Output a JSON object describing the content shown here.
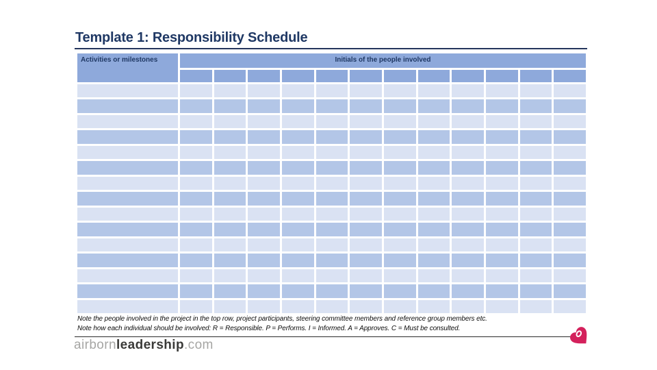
{
  "title": "Template 1: Responsibility Schedule",
  "table": {
    "activities_header": "Activities or milestones",
    "initials_header": "Initials of the people involved",
    "people_columns": 12,
    "body_rows": 15
  },
  "notes": {
    "line1": "Note the people involved in the project in the top row, project participants, steering committee members and reference group members etc.",
    "line2": "Note how each individual should be involved: R = Responsible. P = Performs. I = Informed. A = Approves. C = Must be consulted."
  },
  "footer": {
    "brand_prefix": "airborn",
    "brand_bold": "leadership",
    "brand_suffix": ".com",
    "logo_icon": "heart-logo-icon"
  },
  "colors": {
    "title_navy": "#1F3864",
    "rule_dark": "#24355C",
    "header_blue": "#8EA9DB",
    "row_dark": "#B3C6E7",
    "row_light": "#DAE2F3",
    "heart_pink": "#D4215C"
  }
}
